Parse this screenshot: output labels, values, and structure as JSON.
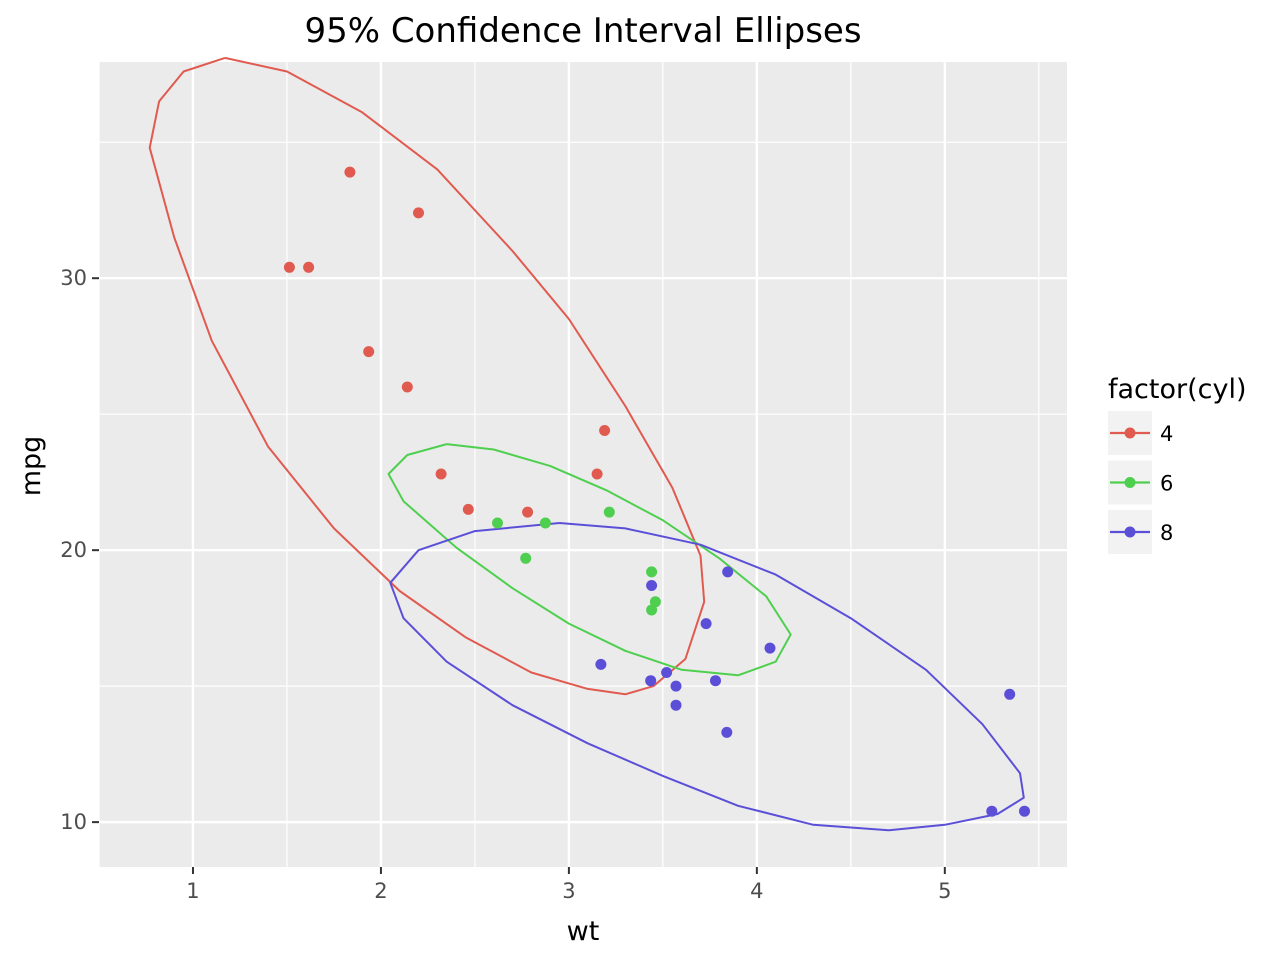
{
  "chart_data": {
    "type": "scatter",
    "title": "95% Confidence Interval Ellipses",
    "xlabel": "wt",
    "ylabel": "mpg",
    "xlim": [
      0.5,
      5.65
    ],
    "ylim": [
      8.35,
      37.95
    ],
    "x_ticks": [
      1,
      2,
      3,
      4,
      5
    ],
    "y_ticks": [
      10,
      20,
      30
    ],
    "grid": true,
    "legend": {
      "title": "factor(cyl)",
      "position": "right"
    },
    "series": [
      {
        "name": "4",
        "color": "#e05a4f",
        "points": [
          {
            "x": 2.32,
            "y": 22.8
          },
          {
            "x": 3.19,
            "y": 24.4
          },
          {
            "x": 3.15,
            "y": 22.8
          },
          {
            "x": 2.2,
            "y": 32.4
          },
          {
            "x": 1.615,
            "y": 30.4
          },
          {
            "x": 1.835,
            "y": 33.9
          },
          {
            "x": 2.465,
            "y": 21.5
          },
          {
            "x": 1.935,
            "y": 27.3
          },
          {
            "x": 2.14,
            "y": 26.0
          },
          {
            "x": 1.513,
            "y": 30.4
          },
          {
            "x": 2.78,
            "y": 21.4
          }
        ]
      },
      {
        "name": "6",
        "color": "#4fcf4f",
        "points": [
          {
            "x": 2.62,
            "y": 21.0
          },
          {
            "x": 2.875,
            "y": 21.0
          },
          {
            "x": 3.215,
            "y": 21.4
          },
          {
            "x": 3.46,
            "y": 18.1
          },
          {
            "x": 3.44,
            "y": 19.2
          },
          {
            "x": 3.44,
            "y": 17.8
          },
          {
            "x": 2.77,
            "y": 19.7
          }
        ]
      },
      {
        "name": "8",
        "color": "#5b4fd8",
        "points": [
          {
            "x": 3.44,
            "y": 18.7
          },
          {
            "x": 3.57,
            "y": 14.3
          },
          {
            "x": 4.07,
            "y": 16.4
          },
          {
            "x": 3.73,
            "y": 17.3
          },
          {
            "x": 3.78,
            "y": 15.2
          },
          {
            "x": 5.25,
            "y": 10.4
          },
          {
            "x": 5.424,
            "y": 10.4
          },
          {
            "x": 5.345,
            "y": 14.7
          },
          {
            "x": 3.52,
            "y": 15.5
          },
          {
            "x": 3.435,
            "y": 15.2
          },
          {
            "x": 3.84,
            "y": 13.3
          },
          {
            "x": 3.845,
            "y": 19.2
          },
          {
            "x": 3.17,
            "y": 15.8
          },
          {
            "x": 3.57,
            "y": 15.0
          }
        ]
      }
    ],
    "ellipses": [
      {
        "group": "4",
        "color": "#e05a4f",
        "points": [
          [
            1.17,
            38.1
          ],
          [
            1.5,
            37.6
          ],
          [
            1.9,
            36.1
          ],
          [
            2.3,
            34.0
          ],
          [
            2.7,
            31.0
          ],
          [
            3.0,
            28.5
          ],
          [
            3.3,
            25.3
          ],
          [
            3.55,
            22.3
          ],
          [
            3.7,
            19.8
          ],
          [
            3.72,
            18.1
          ],
          [
            3.62,
            16.0
          ],
          [
            3.45,
            15.0
          ],
          [
            3.3,
            14.7
          ],
          [
            3.1,
            14.9
          ],
          [
            2.8,
            15.5
          ],
          [
            2.45,
            16.8
          ],
          [
            2.1,
            18.5
          ],
          [
            1.75,
            20.8
          ],
          [
            1.4,
            23.8
          ],
          [
            1.1,
            27.7
          ],
          [
            0.9,
            31.5
          ],
          [
            0.77,
            34.8
          ],
          [
            0.82,
            36.5
          ],
          [
            0.95,
            37.6
          ],
          [
            1.17,
            38.1
          ]
        ]
      },
      {
        "group": "6",
        "color": "#4fcf4f",
        "points": [
          [
            2.35,
            23.9
          ],
          [
            2.6,
            23.7
          ],
          [
            2.9,
            23.1
          ],
          [
            3.2,
            22.2
          ],
          [
            3.5,
            21.1
          ],
          [
            3.8,
            19.7
          ],
          [
            4.05,
            18.3
          ],
          [
            4.18,
            16.9
          ],
          [
            4.1,
            15.9
          ],
          [
            3.9,
            15.4
          ],
          [
            3.6,
            15.6
          ],
          [
            3.3,
            16.3
          ],
          [
            3.0,
            17.3
          ],
          [
            2.7,
            18.6
          ],
          [
            2.4,
            20.1
          ],
          [
            2.12,
            21.8
          ],
          [
            2.04,
            22.8
          ],
          [
            2.14,
            23.5
          ],
          [
            2.35,
            23.9
          ]
        ]
      },
      {
        "group": "8",
        "color": "#5b4fd8",
        "points": [
          [
            2.95,
            21.0
          ],
          [
            3.3,
            20.8
          ],
          [
            3.7,
            20.2
          ],
          [
            4.1,
            19.1
          ],
          [
            4.5,
            17.5
          ],
          [
            4.9,
            15.6
          ],
          [
            5.2,
            13.6
          ],
          [
            5.4,
            11.8
          ],
          [
            5.42,
            10.9
          ],
          [
            5.28,
            10.3
          ],
          [
            5.0,
            9.9
          ],
          [
            4.7,
            9.7
          ],
          [
            4.3,
            9.9
          ],
          [
            3.9,
            10.6
          ],
          [
            3.5,
            11.7
          ],
          [
            3.1,
            12.9
          ],
          [
            2.7,
            14.3
          ],
          [
            2.35,
            15.9
          ],
          [
            2.12,
            17.5
          ],
          [
            2.05,
            18.8
          ],
          [
            2.2,
            20.0
          ],
          [
            2.5,
            20.7
          ],
          [
            2.95,
            21.0
          ]
        ]
      }
    ]
  }
}
